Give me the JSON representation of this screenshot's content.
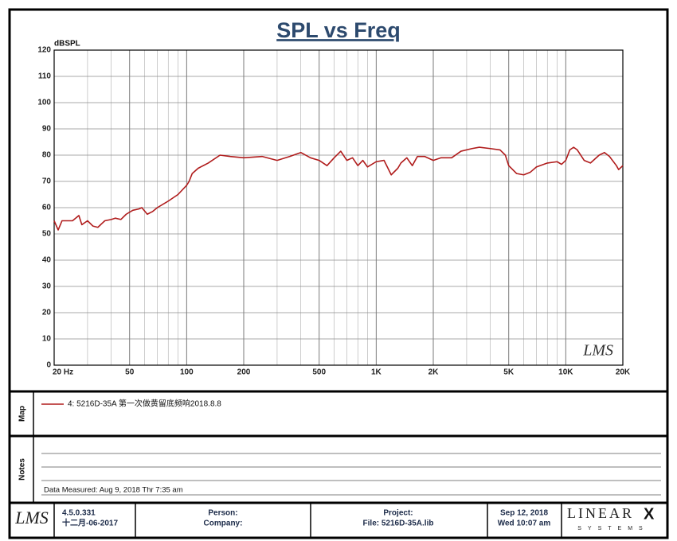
{
  "chart_data": {
    "type": "line",
    "title": "SPL vs Freq",
    "y_label": "dBSPL",
    "watermark": "LMS",
    "x": [
      20,
      21,
      22,
      25,
      27,
      28,
      30,
      32,
      34,
      37,
      40,
      42,
      45,
      48,
      52,
      56,
      58,
      62,
      66,
      70,
      80,
      90,
      100,
      103,
      107,
      115,
      130,
      150,
      170,
      200,
      250,
      300,
      350,
      400,
      450,
      500,
      550,
      600,
      650,
      700,
      750,
      800,
      850,
      900,
      1000,
      1100,
      1200,
      1300,
      1350,
      1450,
      1550,
      1650,
      1800,
      2000,
      2200,
      2500,
      2800,
      3200,
      3500,
      4000,
      4500,
      4800,
      5000,
      5500,
      6000,
      6500,
      7000,
      8000,
      9000,
      9500,
      10000,
      10500,
      11000,
      11500,
      12500,
      13500,
      15000,
      16000,
      17000,
      18500,
      19000,
      20000
    ],
    "series": [
      {
        "name": "4: 5216D-35A 第一次做黄留底频响2018.8.8",
        "color": "#b01c1c",
        "values": [
          55,
          51.5,
          55,
          55,
          57,
          53.5,
          55,
          53,
          52.5,
          55,
          55.5,
          56,
          55.5,
          57.5,
          59,
          59.5,
          60,
          57.5,
          58.5,
          60,
          62.5,
          65,
          68.5,
          70,
          73,
          75,
          77,
          80,
          79.5,
          79,
          79.5,
          78,
          79.5,
          81,
          79,
          78,
          76,
          79,
          81.5,
          78,
          79,
          76,
          78,
          75.5,
          77.5,
          78,
          72.5,
          75,
          77,
          79,
          76,
          79.5,
          79.5,
          78,
          79,
          79,
          81.5,
          82.5,
          83,
          82.5,
          82,
          80,
          76,
          73,
          72.5,
          73.5,
          75.5,
          77,
          77.5,
          76.5,
          78,
          82,
          83,
          82,
          78,
          77,
          80,
          81,
          79.5,
          76,
          74.5,
          76
        ]
      }
    ],
    "x_scale": "log",
    "grid": true,
    "xlim": [
      20,
      20000
    ],
    "xticks": [
      {
        "value": 20,
        "label": "20 Hz"
      },
      50,
      100,
      200,
      500,
      {
        "value": 1000,
        "label": "1K"
      },
      {
        "value": 2000,
        "label": "2K"
      },
      {
        "value": 5000,
        "label": "5K"
      },
      {
        "value": 10000,
        "label": "10K"
      },
      {
        "value": 20000,
        "label": "20K"
      }
    ],
    "ylim": [
      0,
      120
    ],
    "yticks": [
      0,
      10,
      20,
      30,
      40,
      50,
      60,
      70,
      80,
      90,
      100,
      110,
      120
    ]
  },
  "panels": {
    "map": "Map",
    "notes": "Notes",
    "data_measured": "Data Measured: Aug 9, 2018  Thr  7:35 am"
  },
  "footer": {
    "logo": "LMS",
    "version": "4.5.0.331",
    "build_date": "十二月-06-2017",
    "person": "Person:",
    "company": "Company:",
    "project": "Project:",
    "file": "File: 5216D-35A.lib",
    "date": "Sep 12, 2018",
    "time": "Wed 10:07 am",
    "brand": "LINEAR",
    "brand_x": "X",
    "brand_sub": "SYSTEMS"
  }
}
